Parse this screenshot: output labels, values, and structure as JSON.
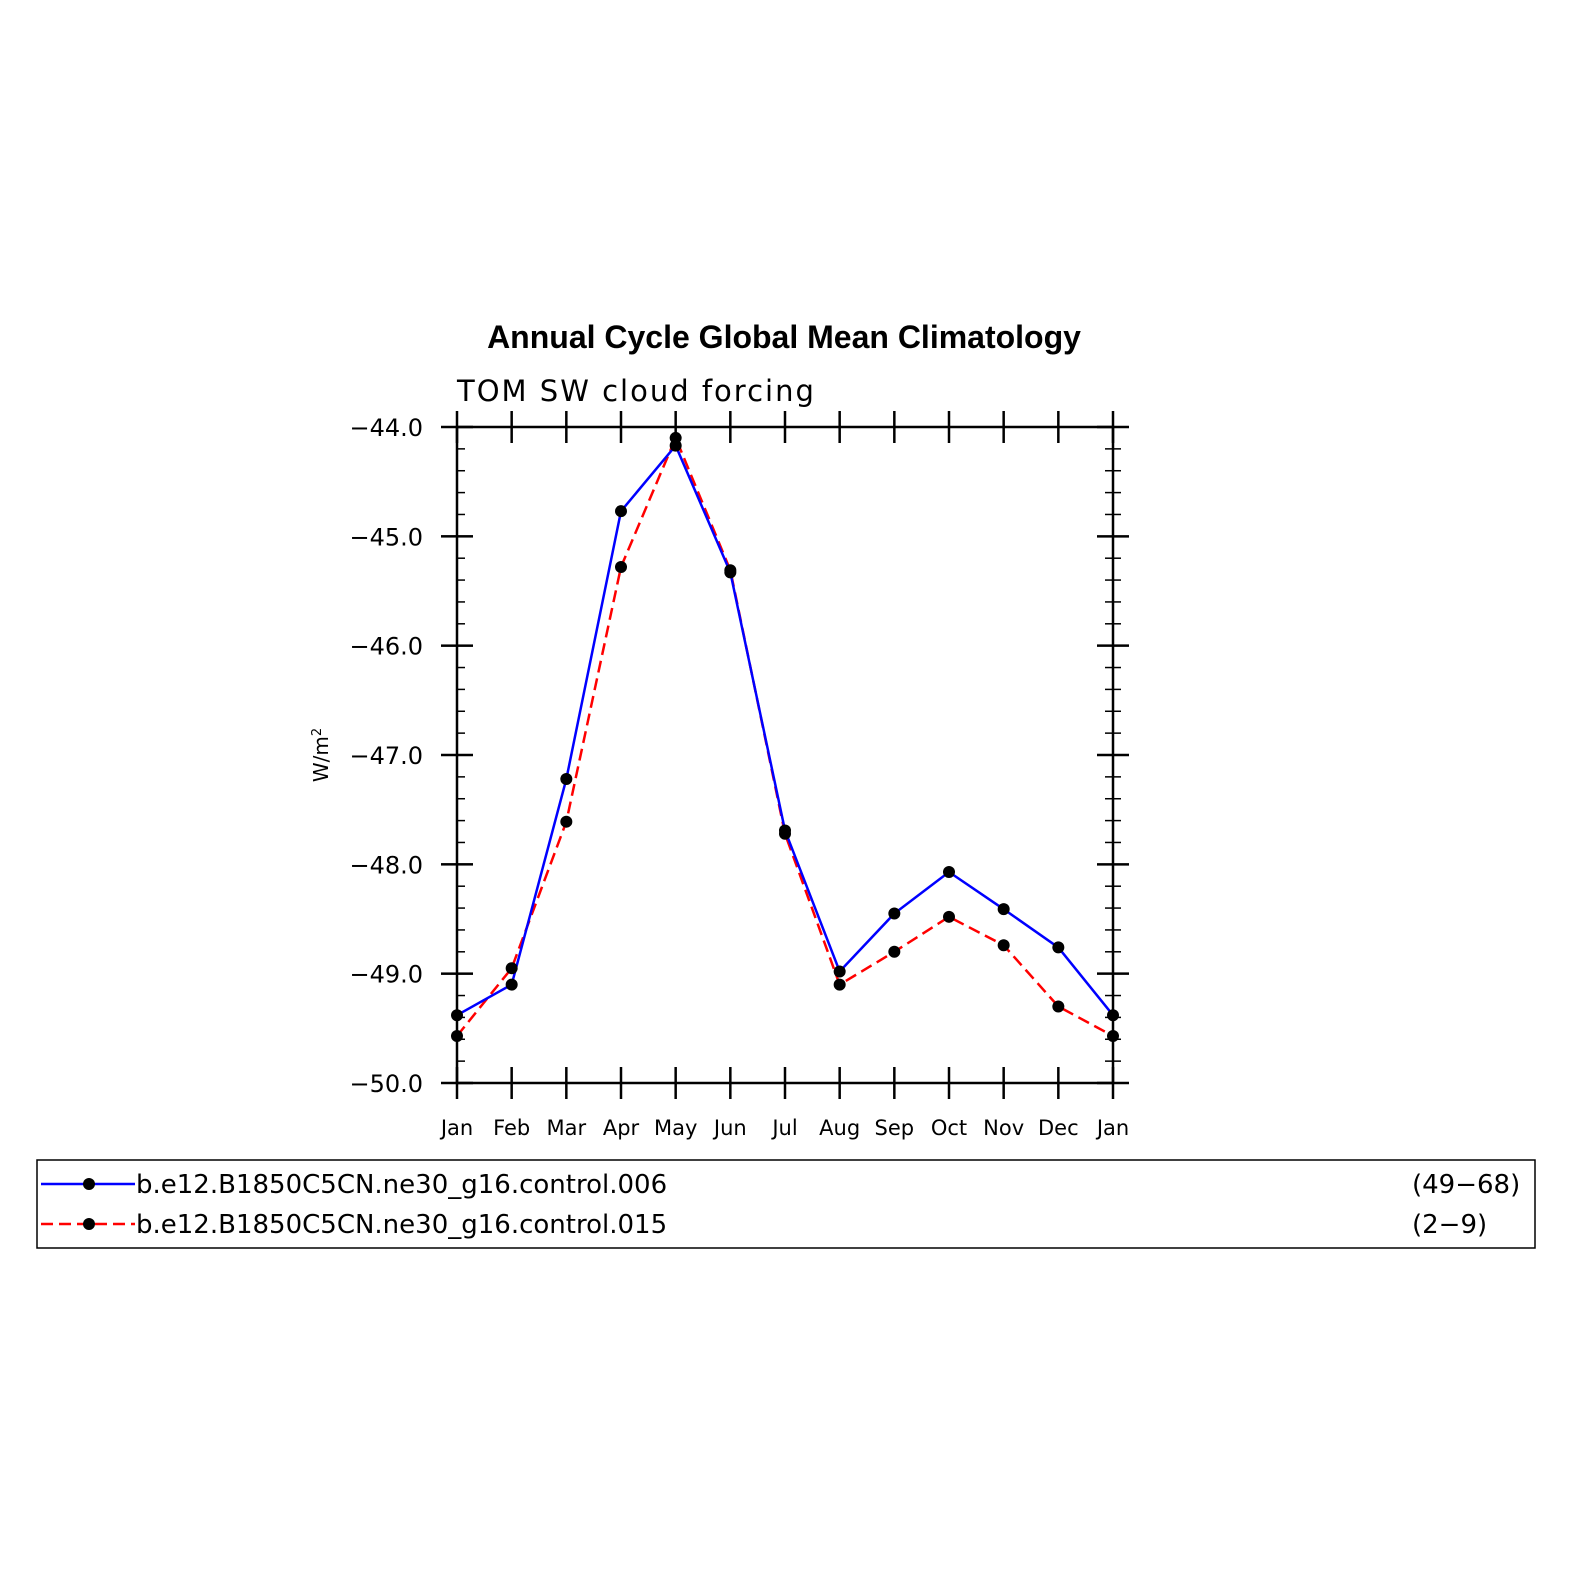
{
  "chart_data": {
    "type": "line",
    "title": "Annual Cycle Global Mean Climatology",
    "subtitle": "TOM SW cloud forcing",
    "ylabel_base": "W/m",
    "ylabel_sup": "2",
    "xlabel": "",
    "categories": [
      "Jan",
      "Feb",
      "Mar",
      "Apr",
      "May",
      "Jun",
      "Jul",
      "Aug",
      "Sep",
      "Oct",
      "Nov",
      "Dec",
      "Jan"
    ],
    "ylim": [
      -50.0,
      -44.0
    ],
    "yticks": [
      "-44.0",
      "-45.0",
      "-46.0",
      "-47.0",
      "-48.0",
      "-49.0",
      "-50.0"
    ],
    "series": [
      {
        "name": "b.e12.B1850C5CN.ne30_g16.control.006",
        "years": "(49−68)",
        "color": "#0000ff",
        "dash": "solid",
        "values": [
          -49.38,
          -49.1,
          -47.22,
          -44.77,
          -44.17,
          -45.33,
          -47.69,
          -48.98,
          -48.45,
          -48.07,
          -48.41,
          -48.76,
          -49.38
        ]
      },
      {
        "name": "b.e12.B1850C5CN.ne30_g16.control.015",
        "years": "(2−9)",
        "color": "#ff0000",
        "dash": "dashed",
        "values": [
          -49.57,
          -48.95,
          -47.61,
          -45.28,
          -44.1,
          -45.31,
          -47.72,
          -49.1,
          -48.8,
          -48.48,
          -48.74,
          -49.3,
          -49.57
        ]
      }
    ],
    "grid": false,
    "legend_position": "bottom"
  }
}
